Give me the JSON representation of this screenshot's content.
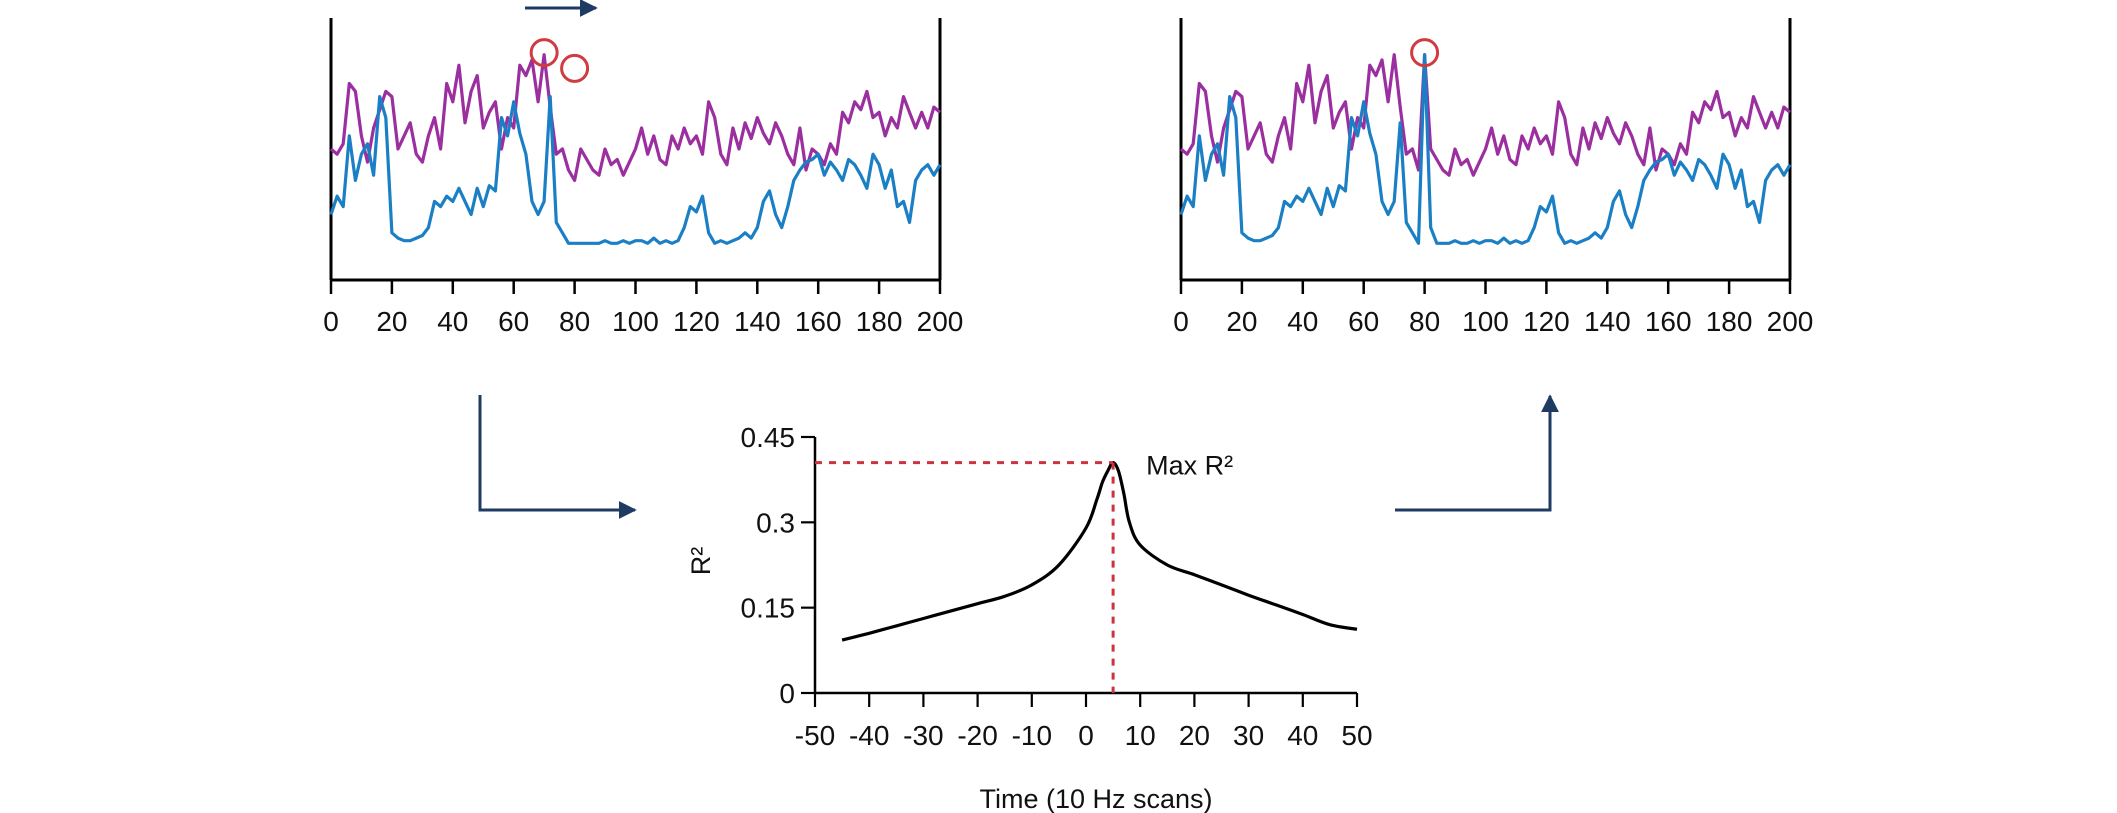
{
  "colors": {
    "series_purple": "#9b2fa0",
    "series_blue": "#1a7fc4",
    "curve": "#000000",
    "axis": "#000000",
    "marker": "#d13b40",
    "guide": "#c9343f",
    "arrow": "#1f3a63"
  },
  "chart_data": [
    {
      "type": "line",
      "panel": "before-alignment",
      "title": "",
      "xlabel": "",
      "ylabel": "",
      "xlim": [
        0,
        200
      ],
      "ylim": [
        0,
        1
      ],
      "y_tick_labels_shown": false,
      "x_ticks": [
        "0",
        "20",
        "40",
        "60",
        "80",
        "100",
        "120",
        "140",
        "160",
        "180",
        "200"
      ],
      "series": [
        {
          "x": [
            0,
            2,
            4,
            6,
            8,
            10,
            12,
            14,
            16,
            18,
            20,
            22,
            24,
            26,
            28,
            30,
            32,
            34,
            36,
            38,
            40,
            42,
            44,
            46,
            48,
            50,
            52,
            54,
            56,
            58,
            60,
            62,
            64,
            66,
            68,
            70,
            72,
            74,
            76,
            78,
            80,
            82,
            84,
            86,
            88,
            90,
            92,
            94,
            96,
            98,
            100,
            102,
            104,
            106,
            108,
            110,
            112,
            114,
            116,
            118,
            120,
            122,
            124,
            126,
            128,
            130,
            132,
            134,
            136,
            138,
            140,
            142,
            144,
            146,
            148,
            150,
            152,
            154,
            156,
            158,
            160,
            162,
            164,
            166,
            168,
            170,
            172,
            174,
            176,
            178,
            180,
            182,
            184,
            186,
            188,
            190,
            192,
            194,
            196,
            198,
            200
          ],
          "values": [
            0.5,
            0.48,
            0.52,
            0.75,
            0.72,
            0.55,
            0.45,
            0.58,
            0.65,
            0.72,
            0.7,
            0.5,
            0.55,
            0.6,
            0.48,
            0.45,
            0.55,
            0.62,
            0.5,
            0.75,
            0.68,
            0.82,
            0.6,
            0.72,
            0.78,
            0.58,
            0.64,
            0.68,
            0.5,
            0.62,
            0.58,
            0.82,
            0.78,
            0.84,
            0.68,
            0.86,
            0.66,
            0.48,
            0.5,
            0.42,
            0.38,
            0.5,
            0.46,
            0.42,
            0.4,
            0.5,
            0.44,
            0.46,
            0.4,
            0.45,
            0.5,
            0.58,
            0.48,
            0.55,
            0.46,
            0.44,
            0.55,
            0.5,
            0.58,
            0.52,
            0.55,
            0.48,
            0.68,
            0.62,
            0.48,
            0.44,
            0.58,
            0.5,
            0.6,
            0.54,
            0.62,
            0.56,
            0.52,
            0.6,
            0.55,
            0.48,
            0.44,
            0.58,
            0.42,
            0.5,
            0.48,
            0.44,
            0.52,
            0.48,
            0.64,
            0.6,
            0.68,
            0.65,
            0.72,
            0.62,
            0.64,
            0.55,
            0.62,
            0.58,
            0.7,
            0.64,
            0.58,
            0.64,
            0.58,
            0.66,
            0.64
          ]
        },
        {
          "x": [
            0,
            2,
            4,
            6,
            8,
            10,
            12,
            14,
            16,
            18,
            20,
            22,
            24,
            26,
            28,
            30,
            32,
            34,
            36,
            38,
            40,
            42,
            44,
            46,
            48,
            50,
            52,
            54,
            56,
            58,
            60,
            62,
            64,
            66,
            68,
            70,
            72,
            74,
            76,
            78,
            80,
            82,
            84,
            86,
            88,
            90,
            92,
            94,
            96,
            98,
            100,
            102,
            104,
            106,
            108,
            110,
            112,
            114,
            116,
            118,
            120,
            122,
            124,
            126,
            128,
            130,
            132,
            134,
            136,
            138,
            140,
            142,
            144,
            146,
            148,
            150,
            152,
            154,
            156,
            158,
            160,
            162,
            164,
            166,
            168,
            170,
            172,
            174,
            176,
            178,
            180,
            182,
            184,
            186,
            188,
            190,
            192,
            194,
            196,
            198,
            200
          ],
          "values": [
            0.25,
            0.32,
            0.28,
            0.55,
            0.38,
            0.48,
            0.52,
            0.4,
            0.7,
            0.62,
            0.18,
            0.16,
            0.15,
            0.15,
            0.16,
            0.17,
            0.2,
            0.3,
            0.28,
            0.32,
            0.3,
            0.35,
            0.3,
            0.25,
            0.35,
            0.28,
            0.36,
            0.34,
            0.62,
            0.55,
            0.68,
            0.56,
            0.48,
            0.3,
            0.25,
            0.3,
            0.7,
            0.22,
            0.18,
            0.14,
            0.14,
            0.14,
            0.14,
            0.14,
            0.14,
            0.15,
            0.14,
            0.14,
            0.15,
            0.14,
            0.15,
            0.15,
            0.14,
            0.16,
            0.14,
            0.15,
            0.14,
            0.15,
            0.2,
            0.28,
            0.26,
            0.32,
            0.18,
            0.14,
            0.15,
            0.14,
            0.15,
            0.16,
            0.18,
            0.16,
            0.2,
            0.3,
            0.34,
            0.25,
            0.2,
            0.28,
            0.38,
            0.42,
            0.45,
            0.46,
            0.48,
            0.4,
            0.45,
            0.42,
            0.38,
            0.46,
            0.44,
            0.4,
            0.35,
            0.48,
            0.44,
            0.35,
            0.42,
            0.28,
            0.3,
            0.22,
            0.38,
            0.42,
            0.44,
            0.4,
            0.44
          ]
        }
      ],
      "markers": [
        {
          "x": 70,
          "y": 0.86
        },
        {
          "x": 80,
          "y": 0.8
        }
      ]
    },
    {
      "type": "line",
      "panel": "after-alignment",
      "title": "",
      "xlabel": "",
      "ylabel": "",
      "xlim": [
        0,
        200
      ],
      "ylim": [
        0,
        1
      ],
      "y_tick_labels_shown": false,
      "x_ticks": [
        "0",
        "20",
        "40",
        "60",
        "80",
        "100",
        "120",
        "140",
        "160",
        "180",
        "200"
      ],
      "series": [
        {
          "x": [
            0,
            2,
            4,
            6,
            8,
            10,
            12,
            14,
            16,
            18,
            20,
            22,
            24,
            26,
            28,
            30,
            32,
            34,
            36,
            38,
            40,
            42,
            44,
            46,
            48,
            50,
            52,
            54,
            56,
            58,
            60,
            62,
            64,
            66,
            68,
            70,
            72,
            74,
            76,
            78,
            80,
            82,
            84,
            86,
            88,
            90,
            92,
            94,
            96,
            98,
            100,
            102,
            104,
            106,
            108,
            110,
            112,
            114,
            116,
            118,
            120,
            122,
            124,
            126,
            128,
            130,
            132,
            134,
            136,
            138,
            140,
            142,
            144,
            146,
            148,
            150,
            152,
            154,
            156,
            158,
            160,
            162,
            164,
            166,
            168,
            170,
            172,
            174,
            176,
            178,
            180,
            182,
            184,
            186,
            188,
            190,
            192,
            194,
            196,
            198,
            200
          ],
          "values": [
            0.5,
            0.48,
            0.52,
            0.75,
            0.72,
            0.55,
            0.45,
            0.58,
            0.65,
            0.72,
            0.7,
            0.5,
            0.55,
            0.6,
            0.48,
            0.45,
            0.55,
            0.62,
            0.5,
            0.75,
            0.68,
            0.82,
            0.6,
            0.72,
            0.78,
            0.58,
            0.64,
            0.68,
            0.5,
            0.62,
            0.58,
            0.82,
            0.78,
            0.84,
            0.68,
            0.86,
            0.66,
            0.48,
            0.5,
            0.42,
            0.86,
            0.5,
            0.46,
            0.42,
            0.4,
            0.5,
            0.44,
            0.46,
            0.4,
            0.45,
            0.5,
            0.58,
            0.48,
            0.55,
            0.46,
            0.44,
            0.55,
            0.5,
            0.58,
            0.52,
            0.55,
            0.48,
            0.68,
            0.62,
            0.48,
            0.44,
            0.58,
            0.5,
            0.6,
            0.54,
            0.62,
            0.56,
            0.52,
            0.6,
            0.55,
            0.48,
            0.44,
            0.58,
            0.42,
            0.5,
            0.48,
            0.44,
            0.52,
            0.48,
            0.64,
            0.6,
            0.68,
            0.65,
            0.72,
            0.62,
            0.64,
            0.55,
            0.62,
            0.58,
            0.7,
            0.64,
            0.58,
            0.64,
            0.58,
            0.66,
            0.64
          ]
        },
        {
          "x": [
            0,
            2,
            4,
            6,
            8,
            10,
            12,
            14,
            16,
            18,
            20,
            22,
            24,
            26,
            28,
            30,
            32,
            34,
            36,
            38,
            40,
            42,
            44,
            46,
            48,
            50,
            52,
            54,
            56,
            58,
            60,
            62,
            64,
            66,
            68,
            70,
            72,
            74,
            76,
            78,
            80,
            82,
            84,
            86,
            88,
            90,
            92,
            94,
            96,
            98,
            100,
            102,
            104,
            106,
            108,
            110,
            112,
            114,
            116,
            118,
            120,
            122,
            124,
            126,
            128,
            130,
            132,
            134,
            136,
            138,
            140,
            142,
            144,
            146,
            148,
            150,
            152,
            154,
            156,
            158,
            160,
            162,
            164,
            166,
            168,
            170,
            172,
            174,
            176,
            178,
            180,
            182,
            184,
            186,
            188,
            190,
            192,
            194,
            196,
            198,
            200
          ],
          "values": [
            0.25,
            0.32,
            0.28,
            0.55,
            0.38,
            0.48,
            0.52,
            0.4,
            0.7,
            0.62,
            0.18,
            0.16,
            0.15,
            0.15,
            0.16,
            0.17,
            0.2,
            0.3,
            0.28,
            0.32,
            0.3,
            0.35,
            0.3,
            0.25,
            0.35,
            0.28,
            0.36,
            0.34,
            0.62,
            0.55,
            0.68,
            0.56,
            0.48,
            0.3,
            0.25,
            0.3,
            0.6,
            0.22,
            0.18,
            0.14,
            0.86,
            0.2,
            0.14,
            0.14,
            0.14,
            0.15,
            0.14,
            0.14,
            0.15,
            0.14,
            0.15,
            0.15,
            0.14,
            0.16,
            0.14,
            0.15,
            0.14,
            0.15,
            0.2,
            0.28,
            0.26,
            0.32,
            0.18,
            0.14,
            0.15,
            0.14,
            0.15,
            0.16,
            0.18,
            0.16,
            0.2,
            0.3,
            0.34,
            0.25,
            0.2,
            0.28,
            0.38,
            0.42,
            0.45,
            0.46,
            0.48,
            0.4,
            0.45,
            0.42,
            0.38,
            0.46,
            0.44,
            0.4,
            0.35,
            0.48,
            0.44,
            0.35,
            0.42,
            0.28,
            0.3,
            0.22,
            0.38,
            0.42,
            0.44,
            0.4,
            0.44
          ]
        }
      ],
      "markers": [
        {
          "x": 80,
          "y": 0.86
        }
      ]
    },
    {
      "type": "line",
      "panel": "cross-correlation",
      "title": "",
      "xlabel": "Time (10 Hz scans)",
      "ylabel": "R²",
      "xlim": [
        -50,
        50
      ],
      "ylim": [
        0,
        0.45
      ],
      "x_ticks": [
        "-50",
        "-40",
        "-30",
        "-20",
        "-10",
        "0",
        "10",
        "20",
        "30",
        "40",
        "50"
      ],
      "y_ticks": [
        "0",
        "0.15",
        "0.3",
        "0.45"
      ],
      "series": [
        {
          "x": [
            -45,
            -40,
            -35,
            -30,
            -25,
            -20,
            -15,
            -10,
            -5,
            0,
            2,
            3,
            4,
            5,
            6,
            7,
            8,
            10,
            15,
            20,
            25,
            30,
            35,
            40,
            45,
            50
          ],
          "values": [
            0.093,
            0.105,
            0.118,
            0.131,
            0.144,
            0.157,
            0.17,
            0.19,
            0.225,
            0.29,
            0.34,
            0.37,
            0.39,
            0.405,
            0.39,
            0.35,
            0.3,
            0.26,
            0.225,
            0.208,
            0.19,
            0.172,
            0.155,
            0.138,
            0.12,
            0.112
          ]
        }
      ],
      "annotation": {
        "label": "Max R²",
        "x": 5,
        "y": 0.405
      }
    }
  ]
}
